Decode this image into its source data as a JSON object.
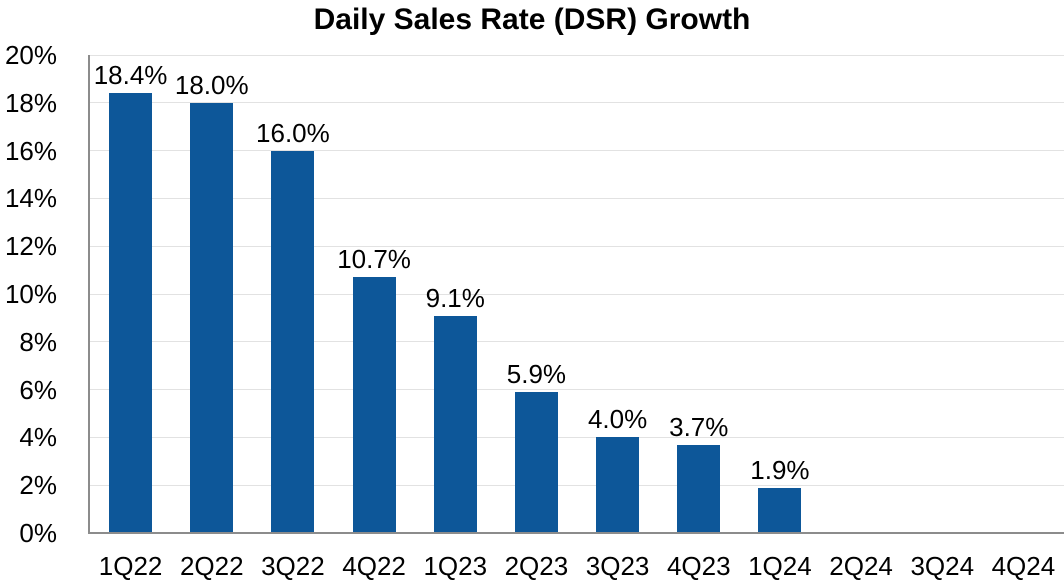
{
  "chart": {
    "title": "Daily Sales Rate (DSR) Growth"
  },
  "chart_data": {
    "type": "bar",
    "title": "Daily Sales Rate (DSR) Growth",
    "categories": [
      "1Q22",
      "2Q22",
      "3Q22",
      "4Q22",
      "1Q23",
      "2Q23",
      "3Q23",
      "4Q23",
      "1Q24",
      "2Q24",
      "3Q24",
      "4Q24"
    ],
    "values": [
      18.4,
      18.0,
      16.0,
      10.7,
      9.1,
      5.9,
      4.0,
      3.7,
      1.9,
      null,
      null,
      null
    ],
    "data_labels": [
      "18.4%",
      "18.0%",
      "16.0%",
      "10.7%",
      "9.1%",
      "5.9%",
      "4.0%",
      "3.7%",
      "1.9%",
      "",
      "",
      ""
    ],
    "xlabel": "",
    "ylabel": "",
    "ylim": [
      0,
      20
    ],
    "y_tick_step": 2,
    "y_tick_labels": [
      "0%",
      "2%",
      "4%",
      "6%",
      "8%",
      "10%",
      "12%",
      "14%",
      "16%",
      "18%",
      "20%"
    ],
    "grid": true,
    "legend_position": "none",
    "colors": {
      "bar_fill": "#0d5799",
      "gridline": "#e2e2e2",
      "axis_line": "#8c8c8c",
      "text": "#000000",
      "background": "#ffffff"
    }
  }
}
